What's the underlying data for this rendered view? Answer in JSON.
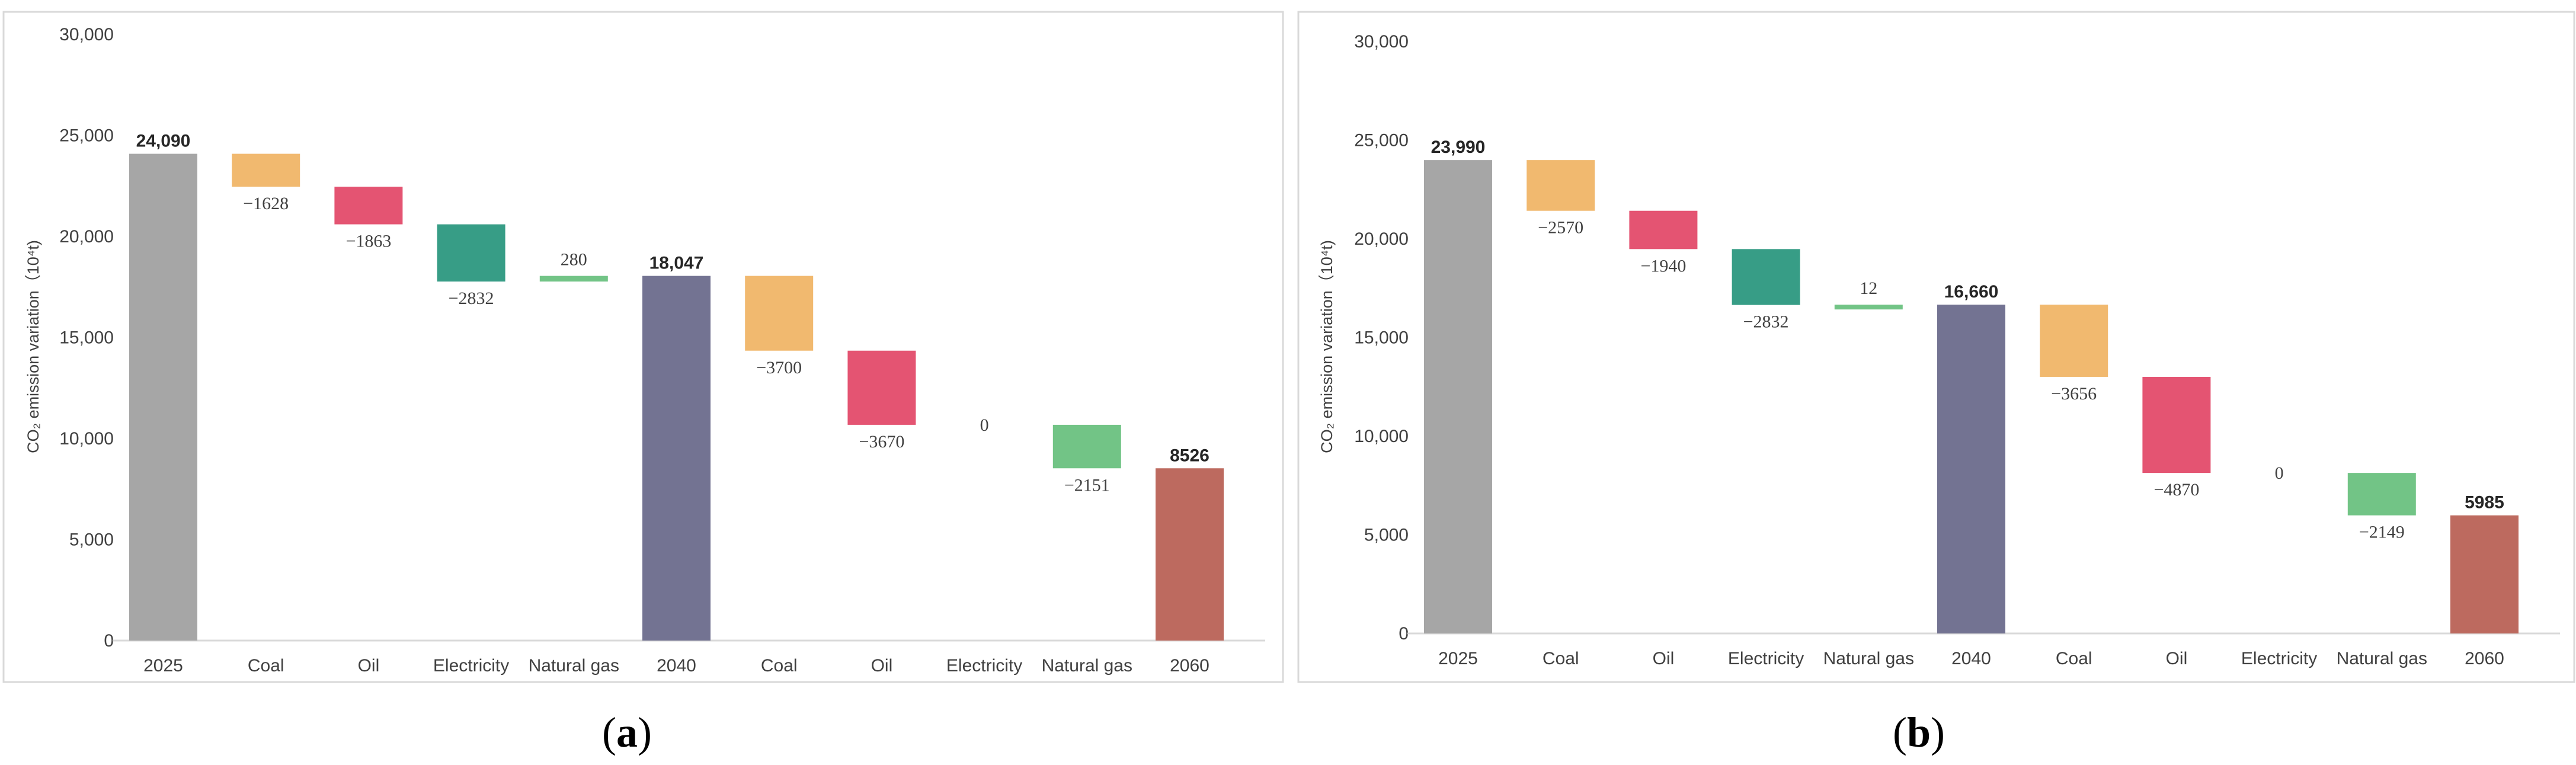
{
  "colors": {
    "total_2025": "#a6a6a6",
    "total_2040": "#737392",
    "total_2060": "#bd6a5f",
    "coal": "#f1b96f",
    "oil": "#e45472",
    "electricity": "#379d86",
    "natural_gas": "#72c486"
  },
  "chart_data": [
    {
      "type": "waterfall",
      "panel_label": "a",
      "ylabel": "CO₂ emission variation（10⁴t)",
      "ylim": [
        0,
        30000
      ],
      "yticks": [
        "0",
        "5,000",
        "10,000",
        "15,000",
        "20,000",
        "25,000",
        "30,000"
      ],
      "yticks_values": [
        0,
        5000,
        10000,
        15000,
        20000,
        25000,
        30000
      ],
      "bars": [
        {
          "category": "2025",
          "kind": "total",
          "value": 24090,
          "label": "24,090",
          "color_key": "total_2025"
        },
        {
          "category": "Coal",
          "kind": "delta",
          "value": -1628,
          "label": "−1628",
          "color_key": "coal"
        },
        {
          "category": "Oil",
          "kind": "delta",
          "value": -1863,
          "label": "−1863",
          "color_key": "oil"
        },
        {
          "category": "Electricity",
          "kind": "delta",
          "value": -2832,
          "label": "−2832",
          "color_key": "electricity"
        },
        {
          "category": "Natural gas",
          "kind": "delta",
          "value": 280,
          "label": "280",
          "color_key": "natural_gas"
        },
        {
          "category": "2040",
          "kind": "total",
          "value": 18047,
          "label": "18,047",
          "color_key": "total_2040"
        },
        {
          "category": "Coal",
          "kind": "delta",
          "value": -3700,
          "label": "−3700",
          "color_key": "coal"
        },
        {
          "category": "Oil",
          "kind": "delta",
          "value": -3670,
          "label": "−3670",
          "color_key": "oil"
        },
        {
          "category": "Electricity",
          "kind": "delta",
          "value": 0,
          "label": "0",
          "color_key": "electricity"
        },
        {
          "category": "Natural gas",
          "kind": "delta",
          "value": -2151,
          "label": "−2151",
          "color_key": "natural_gas"
        },
        {
          "category": "2060",
          "kind": "total",
          "value": 8526,
          "label": "8526",
          "color_key": "total_2060"
        }
      ]
    },
    {
      "type": "waterfall",
      "panel_label": "b",
      "ylabel": "CO₂ emission variation（10⁴t)",
      "ylim": [
        0,
        30000
      ],
      "yticks": [
        "0",
        "5,000",
        "10,000",
        "15,000",
        "20,000",
        "25,000",
        "30,000"
      ],
      "yticks_values": [
        0,
        5000,
        10000,
        15000,
        20000,
        25000,
        30000
      ],
      "bars": [
        {
          "category": "2025",
          "kind": "total",
          "value": 23990,
          "label": "23,990",
          "color_key": "total_2025"
        },
        {
          "category": "Coal",
          "kind": "delta",
          "value": -2570,
          "label": "−2570",
          "color_key": "coal"
        },
        {
          "category": "Oil",
          "kind": "delta",
          "value": -1940,
          "label": "−1940",
          "color_key": "oil"
        },
        {
          "category": "Electricity",
          "kind": "delta",
          "value": -2832,
          "label": "−2832",
          "color_key": "electricity"
        },
        {
          "category": "Natural gas",
          "kind": "delta",
          "value": 12,
          "label": "12",
          "color_key": "natural_gas"
        },
        {
          "category": "2040",
          "kind": "total",
          "value": 16660,
          "label": "16,660",
          "color_key": "total_2040"
        },
        {
          "category": "Coal",
          "kind": "delta",
          "value": -3656,
          "label": "−3656",
          "color_key": "coal"
        },
        {
          "category": "Oil",
          "kind": "delta",
          "value": -4870,
          "label": "−4870",
          "color_key": "oil"
        },
        {
          "category": "Electricity",
          "kind": "delta",
          "value": 0,
          "label": "0",
          "color_key": "electricity"
        },
        {
          "category": "Natural gas",
          "kind": "delta",
          "value": -2149,
          "label": "−2149",
          "color_key": "natural_gas"
        },
        {
          "category": "2060",
          "kind": "total",
          "value": 5985,
          "label": "5985",
          "color_key": "total_2060"
        }
      ]
    }
  ]
}
